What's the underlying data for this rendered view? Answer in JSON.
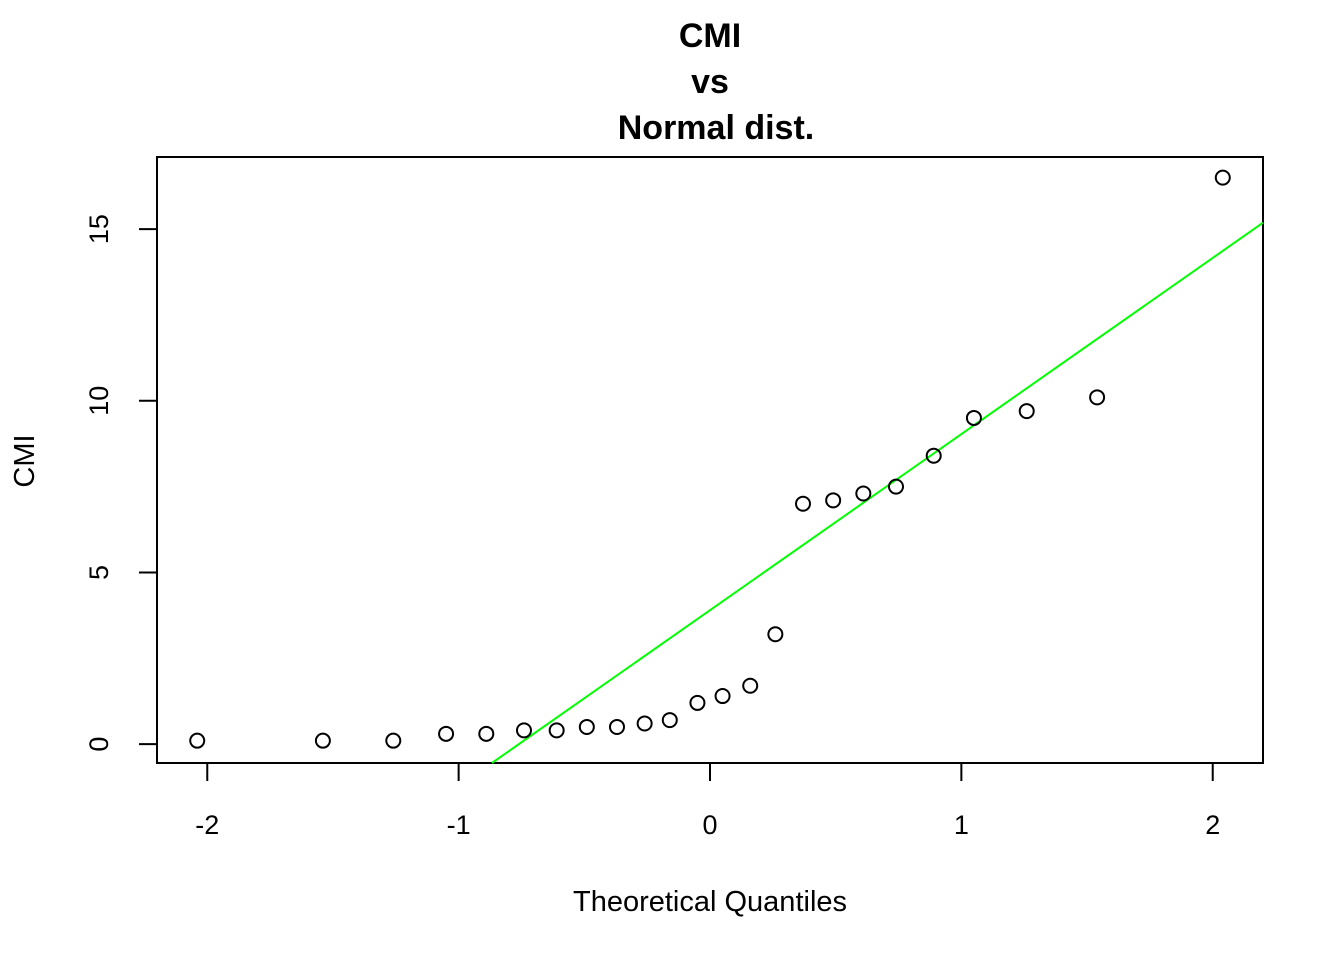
{
  "chart_data": {
    "type": "scatter",
    "title_lines": [
      "CMI",
      "vs",
      "Normal dist."
    ],
    "xlabel": "Theoretical Quantiles",
    "ylabel": "CMI",
    "xlim": [
      -2.2,
      2.2
    ],
    "ylim": [
      -0.55,
      17.1
    ],
    "x_ticks": [
      -2,
      -1,
      0,
      1,
      2
    ],
    "x_tick_labels": [
      "-2",
      "-1",
      "0",
      "1",
      "2"
    ],
    "y_ticks": [
      0,
      5,
      10,
      15
    ],
    "y_tick_labels": [
      "0",
      "5",
      "10",
      "15"
    ],
    "grid": false,
    "series": [
      {
        "marker": "open-circle",
        "color": "#000000",
        "points": [
          {
            "x": -2.04,
            "y": 0.1
          },
          {
            "x": -1.54,
            "y": 0.1
          },
          {
            "x": -1.26,
            "y": 0.1
          },
          {
            "x": -1.05,
            "y": 0.3
          },
          {
            "x": -0.89,
            "y": 0.3
          },
          {
            "x": -0.74,
            "y": 0.4
          },
          {
            "x": -0.61,
            "y": 0.4
          },
          {
            "x": -0.49,
            "y": 0.5
          },
          {
            "x": -0.37,
            "y": 0.5
          },
          {
            "x": -0.26,
            "y": 0.6
          },
          {
            "x": -0.16,
            "y": 0.7
          },
          {
            "x": -0.05,
            "y": 1.2
          },
          {
            "x": 0.05,
            "y": 1.4
          },
          {
            "x": 0.16,
            "y": 1.7
          },
          {
            "x": 0.26,
            "y": 3.2
          },
          {
            "x": 0.37,
            "y": 7.0
          },
          {
            "x": 0.49,
            "y": 7.1
          },
          {
            "x": 0.61,
            "y": 7.3
          },
          {
            "x": 0.74,
            "y": 7.5
          },
          {
            "x": 0.89,
            "y": 8.4
          },
          {
            "x": 1.05,
            "y": 9.5
          },
          {
            "x": 1.26,
            "y": 9.7
          },
          {
            "x": 1.54,
            "y": 10.1
          },
          {
            "x": 2.04,
            "y": 16.5
          }
        ]
      }
    ],
    "reference_line": {
      "color": "#00ff00",
      "intercept": 3.9,
      "slope": 5.13
    }
  }
}
